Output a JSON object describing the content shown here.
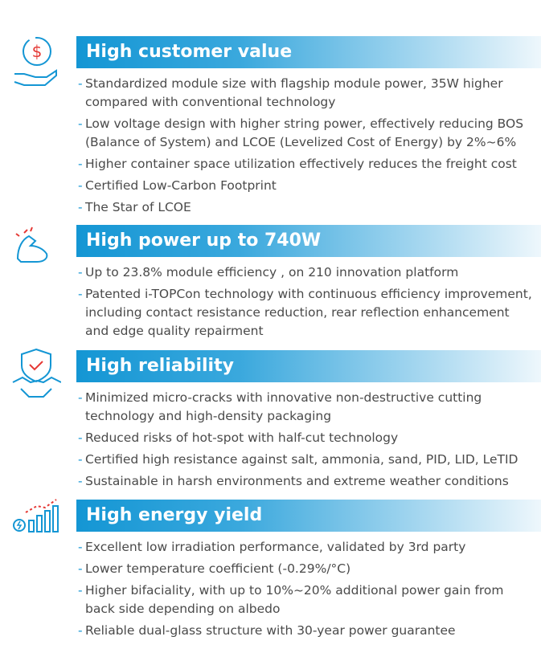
{
  "sections": [
    {
      "title": "High customer value",
      "items": [
        [
          "Standardized module size with flagship module power, 35W higher",
          "compared with conventional technology"
        ],
        [
          "Low voltage design with higher string power, effectively reducing BOS",
          "(Balance of System) and LCOE  (Levelized Cost of Energy) by 2%~6%"
        ],
        [
          "Higher container space utilization effectively reduces the freight cost"
        ],
        [
          "Certified Low-Carbon Footprint"
        ],
        [
          "The Star of LCOE"
        ]
      ]
    },
    {
      "title": "High power up to 740W",
      "items": [
        [
          "Up to 23.8% module efficiency , on  210 innovation platform"
        ],
        [
          "Patented i-TOPCon technology with continuous efficiency improvement,",
          "including contact resistance reduction, rear reflection enhancement",
          "and edge quality repairment"
        ]
      ]
    },
    {
      "title": "High reliability",
      "items": [
        [
          "Minimized micro-cracks with innovative non-destructive cutting",
          "technology and high-density packaging"
        ],
        [
          "Reduced risks of hot-spot with half-cut technology"
        ],
        [
          "Certified high resistance against salt, ammonia, sand, PID, LID, LeTID"
        ],
        [
          "Sustainable in harsh environments and extreme weather conditions"
        ]
      ]
    },
    {
      "title": "High energy yield",
      "items": [
        [
          "Excellent low irradiation performance, validated by 3rd party"
        ],
        [
          "Lower temperature coefficient (-0.29%/°C)"
        ],
        [
          "Higher bifaciality, with up to 10%~20% additional power gain from",
          "back side depending on albedo"
        ],
        [
          "Reliable  dual-glass structure with 30-year power guarantee"
        ]
      ]
    }
  ]
}
